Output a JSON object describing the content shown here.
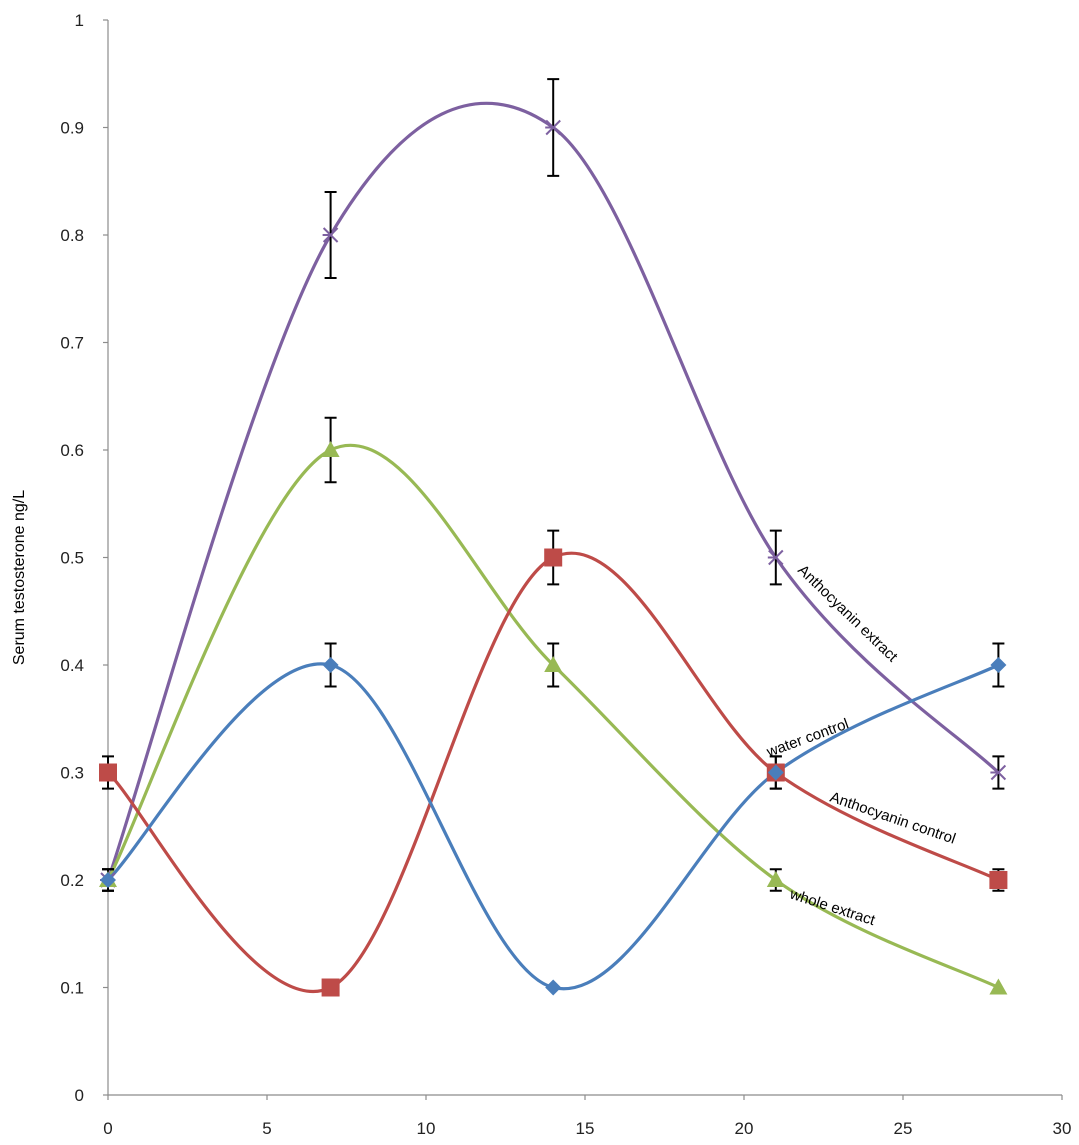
{
  "chart_data": {
    "type": "line",
    "title": "",
    "xlabel": "",
    "ylabel": "Serum testosterone ng/L",
    "xlim": [
      0,
      30
    ],
    "ylim": [
      0,
      1
    ],
    "x_ticks": [
      "0",
      "5",
      "10",
      "15",
      "20",
      "25",
      "30"
    ],
    "y_ticks": [
      "0",
      "0.1",
      "0.2",
      "0.3",
      "0.4",
      "0.5",
      "0.6",
      "0.7",
      "0.8",
      "0.9",
      "1"
    ],
    "grid": false,
    "legend": "inline labels",
    "x": [
      0,
      7,
      14,
      21,
      28
    ],
    "series": [
      {
        "name": "water control",
        "color": "#4A7EBB",
        "marker": "diamond",
        "values": [
          0.2,
          0.4,
          0.1,
          0.3,
          0.4
        ],
        "errors": [
          0.01,
          0.02,
          0,
          0.015,
          0.02
        ]
      },
      {
        "name": "Anthocyanin control",
        "color": "#BE4B48",
        "marker": "square",
        "values": [
          0.3,
          0.1,
          0.5,
          0.3,
          0.2
        ],
        "errors": [
          0.015,
          0,
          0.025,
          0.015,
          0.01
        ]
      },
      {
        "name": "whole extract",
        "color": "#98B954",
        "marker": "triangle",
        "values": [
          0.2,
          0.6,
          0.4,
          0.2,
          0.1
        ],
        "errors": [
          0.01,
          0.03,
          0.02,
          0.01,
          0
        ]
      },
      {
        "name": "Anthocyanin extract",
        "color": "#7D60A0",
        "marker": "x",
        "values": [
          0.2,
          0.8,
          0.9,
          0.5,
          0.3
        ],
        "errors": [
          0.01,
          0.04,
          0.045,
          0.025,
          0.015
        ]
      }
    ]
  }
}
